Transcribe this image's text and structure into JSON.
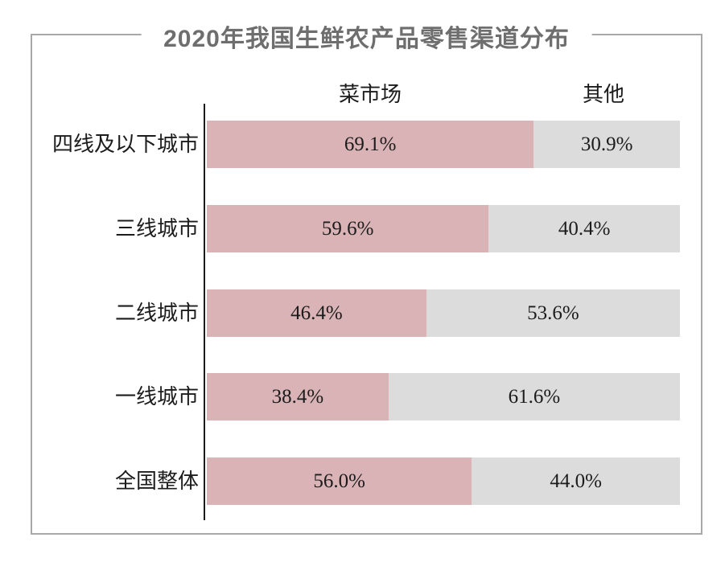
{
  "title": "2020年我国生鲜农产品零售渠道分布",
  "colors": {
    "market_bar": "#d9b3b5",
    "other_bar": "#dcdcdc",
    "frame_border": "#a8a8a8",
    "axis_line": "#1a1a1a",
    "title_text": "#6e6e6e",
    "label_text": "#1c1c1c"
  },
  "chart_data": {
    "type": "bar",
    "orientation": "horizontal",
    "stacked": true,
    "title": "2020年我国生鲜农产品零售渠道分布",
    "xlim": [
      0,
      100
    ],
    "categories": [
      "四线及以下城市",
      "三线城市",
      "二线城市",
      "一线城市",
      "全国整体"
    ],
    "series": [
      {
        "name": "菜市场",
        "color": "#d9b3b5",
        "values": [
          69.1,
          59.6,
          46.4,
          38.4,
          56.0
        ]
      },
      {
        "name": "其他",
        "color": "#dcdcdc",
        "values": [
          30.9,
          40.4,
          53.6,
          61.6,
          44.0
        ]
      }
    ],
    "value_labels": [
      [
        "69.1%",
        "30.9%"
      ],
      [
        "59.6%",
        "40.4%"
      ],
      [
        "46.4%",
        "53.6%"
      ],
      [
        "38.4%",
        "61.6%"
      ],
      [
        "56.0%",
        "44.0%"
      ]
    ]
  }
}
